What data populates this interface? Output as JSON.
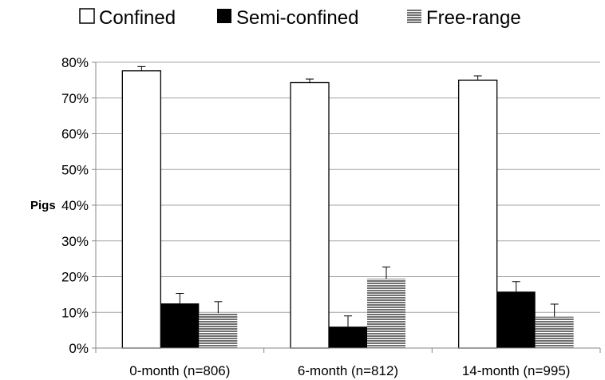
{
  "chart_data": {
    "type": "bar",
    "ylabel": "Pigs",
    "categories": [
      "0-month (n=806)",
      "6-month (n=812)",
      "14-month (n=995)"
    ],
    "series": [
      {
        "name": "Confined",
        "values": [
          0.776,
          0.743,
          0.75
        ],
        "errors": [
          0.012,
          0.01,
          0.012
        ],
        "fill": "#ffffff",
        "pattern": "solid"
      },
      {
        "name": "Semi-confined",
        "values": [
          0.125,
          0.06,
          0.158
        ],
        "errors": [
          0.028,
          0.03,
          0.028
        ],
        "fill": "#000000",
        "pattern": "solid"
      },
      {
        "name": "Free-range",
        "values": [
          0.098,
          0.194,
          0.088
        ],
        "errors": [
          0.032,
          0.033,
          0.035
        ],
        "fill": "#7a7a7a",
        "pattern": "horizontal-lines"
      }
    ],
    "yticks": [
      "0%",
      "10%",
      "20%",
      "30%",
      "40%",
      "50%",
      "60%",
      "70%",
      "80%"
    ],
    "ylim": [
      0,
      0.8
    ],
    "grid": true,
    "legend": "top"
  }
}
